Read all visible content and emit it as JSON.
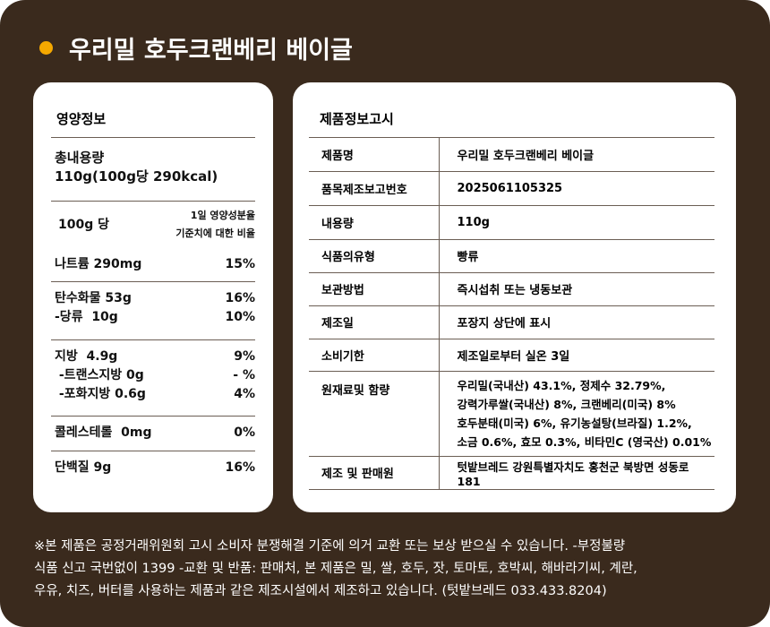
{
  "title": "우리밀 호두크랜베리 베이글",
  "colors": {
    "background": "#3a2a1d",
    "accent_dot": "#f5a800"
  },
  "nutrition": {
    "heading": "영양정보",
    "total_label": "총내용량",
    "total_value": "110g(100g당 290kcal)",
    "per": "100g 당",
    "dv_line1": "1일 영양성분율",
    "dv_line2": "기준치에 대한 비율",
    "groups": [
      [
        {
          "name": "나트륨 290mg",
          "pct": "15%"
        }
      ],
      [
        {
          "name": "탄수화물 53g",
          "pct": "16%"
        },
        {
          "name": "-당류  10g",
          "pct": "10%"
        }
      ],
      [
        {
          "name": "지방  4.9g",
          "pct": "9%"
        },
        {
          "name": " -트랜스지방 0g",
          "pct": "- %"
        },
        {
          "name": " -포화지방 0.6g",
          "pct": "4%"
        }
      ],
      [
        {
          "name": "콜레스테롤  0mg",
          "pct": "0%"
        }
      ],
      [
        {
          "name": "단백질 9g",
          "pct": "16%"
        }
      ]
    ]
  },
  "product": {
    "heading": "제품정보고시",
    "rows": [
      {
        "k": "제품명",
        "v": "우리밀 호두크랜베리 베이글"
      },
      {
        "k": "품목제조보고번호",
        "v": "2025061105325"
      },
      {
        "k": "내용량",
        "v": "110g"
      },
      {
        "k": "식품의유형",
        "v": "빵류"
      },
      {
        "k": "보관방법",
        "v": "즉시섭취 또는 냉동보관"
      },
      {
        "k": "제조일",
        "v": "포장지 상단에 표시"
      },
      {
        "k": "소비기한",
        "v": "제조일로부터 실온 3일"
      },
      {
        "k": "원재료및 함량",
        "v": "우리밀(국내산) 43.1%, 정제수 32.79%,\n강력가루쌀(국내산) 8%, 크랜베리(미국) 8%\n호두분태(미국) 6%, 유기농설탕(브라질) 1.2%,\n소금 0.6%,  효모 0.3%, 비타민C (영국산) 0.01%"
      },
      {
        "k": "제조 및 판매원",
        "v": "텃밭브레드  강원특별자치도 홍천군 북방면 성동로 181"
      }
    ]
  },
  "footer": [
    "※본 제품은 공정거래위원회 고시 소비자 분쟁해결 기준에 의거 교환 또는 보상 받으실 수 있습니다. -부정불량",
    "식품 신고 국번없이 1399 -교환 및 반품: 판매처, 본 제품은 밀, 쌀, 호두, 잣, 토마토, 호박씨, 해바라기씨, 계란,",
    "우유, 치즈, 버터를 사용하는 제품과 같은 제조시설에서 제조하고 있습니다. (텃밭브레드 033.433.8204)"
  ]
}
